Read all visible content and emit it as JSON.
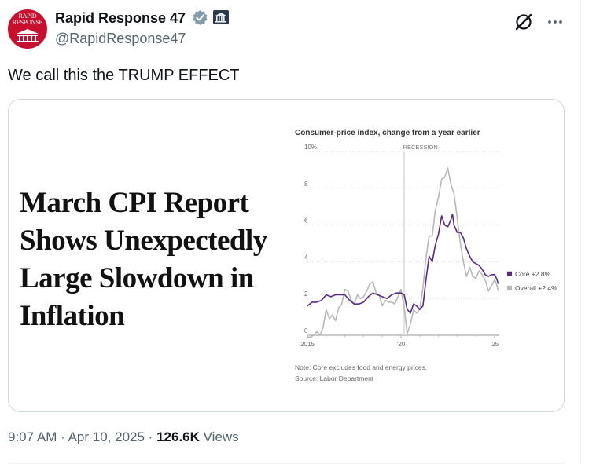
{
  "author": {
    "display_name": "Rapid Response 47",
    "handle": "@RapidResponse47",
    "avatar_text": [
      "RAPID",
      "RESPONSE"
    ]
  },
  "tweet": {
    "text": "We call this the TRUMP EFFECT",
    "headline": "March CPI Report Shows Unexpectedly Large Slowdown in Inflation"
  },
  "meta": {
    "time": "9:07 AM",
    "date": "Apr 10, 2025",
    "separator": "·",
    "views_count": "126.6K",
    "views_label": "Views"
  },
  "colors": {
    "text": "#0f1419",
    "secondary": "#536471",
    "verified": "#829aab",
    "avatar": "#c8102e",
    "core_series": "#5b2a86",
    "overall_series": "#b8b8b8"
  },
  "icons": {
    "verified": "verified-badge-icon",
    "government": "government-building-icon",
    "grok": "grok-icon",
    "more": "more-dots-icon"
  },
  "chart_data": {
    "type": "line",
    "title": "Consumer-price index, change from a year earlier",
    "ylim": [
      0,
      10
    ],
    "yticks": [
      {
        "v": 0,
        "label": "0"
      },
      {
        "v": 2,
        "label": "2"
      },
      {
        "v": 4,
        "label": "4"
      },
      {
        "v": 6,
        "label": "6"
      },
      {
        "v": 8,
        "label": "8"
      },
      {
        "v": 10,
        "label": "10%"
      }
    ],
    "xlim": [
      2015.0,
      2025.25
    ],
    "xticks": [
      {
        "v": 2015.0,
        "label": "2015"
      },
      {
        "v": 2020.0,
        "label": "'20"
      },
      {
        "v": 2025.0,
        "label": "'25"
      }
    ],
    "annotation": {
      "label": "RECESSION",
      "x": 2020.15
    },
    "note": "Note: Core excludes food and energy prices.",
    "source": "Source: Labor Department",
    "series": [
      {
        "name": "Core",
        "legend": "Core +2.8%",
        "color": "#5b2a86",
        "x": [
          2015.0,
          2015.25,
          2015.5,
          2015.75,
          2016.0,
          2016.25,
          2016.5,
          2016.75,
          2017.0,
          2017.25,
          2017.5,
          2017.75,
          2018.0,
          2018.25,
          2018.5,
          2018.75,
          2019.0,
          2019.25,
          2019.5,
          2019.75,
          2020.0,
          2020.17,
          2020.33,
          2020.5,
          2020.67,
          2020.83,
          2021.0,
          2021.17,
          2021.33,
          2021.5,
          2021.67,
          2021.83,
          2022.0,
          2022.17,
          2022.33,
          2022.5,
          2022.67,
          2022.75,
          2022.83,
          2023.0,
          2023.17,
          2023.33,
          2023.5,
          2023.67,
          2023.83,
          2024.0,
          2024.17,
          2024.33,
          2024.5,
          2024.67,
          2024.83,
          2025.0,
          2025.1,
          2025.2
        ],
        "y": [
          1.6,
          1.8,
          1.8,
          1.9,
          2.2,
          2.1,
          2.2,
          2.2,
          2.2,
          1.9,
          1.7,
          1.7,
          1.8,
          2.1,
          2.3,
          2.2,
          2.1,
          2.0,
          2.2,
          2.3,
          2.3,
          2.2,
          1.4,
          1.2,
          1.7,
          1.6,
          1.4,
          1.6,
          3.0,
          4.3,
          4.0,
          4.9,
          5.5,
          6.5,
          6.0,
          5.9,
          6.3,
          6.6,
          6.0,
          5.6,
          5.6,
          5.3,
          4.7,
          4.3,
          4.0,
          3.9,
          3.8,
          3.6,
          3.3,
          3.2,
          3.3,
          3.3,
          3.1,
          2.8
        ]
      },
      {
        "name": "Overall",
        "legend": "Overall +2.4%",
        "color": "#b8b8b8",
        "x": [
          2015.0,
          2015.17,
          2015.33,
          2015.5,
          2015.67,
          2015.83,
          2016.0,
          2016.17,
          2016.33,
          2016.5,
          2016.67,
          2016.83,
          2017.0,
          2017.17,
          2017.33,
          2017.5,
          2017.67,
          2017.83,
          2018.0,
          2018.17,
          2018.33,
          2018.5,
          2018.67,
          2018.83,
          2019.0,
          2019.17,
          2019.33,
          2019.5,
          2019.67,
          2019.83,
          2020.0,
          2020.17,
          2020.33,
          2020.5,
          2020.67,
          2020.83,
          2021.0,
          2021.17,
          2021.33,
          2021.5,
          2021.67,
          2021.83,
          2022.0,
          2022.17,
          2022.33,
          2022.5,
          2022.67,
          2022.83,
          2023.0,
          2023.17,
          2023.33,
          2023.5,
          2023.67,
          2023.83,
          2024.0,
          2024.17,
          2024.33,
          2024.5,
          2024.67,
          2024.83,
          2025.0,
          2025.1,
          2025.2
        ],
        "y": [
          -0.1,
          -0.1,
          0.0,
          0.2,
          0.0,
          0.4,
          1.4,
          0.9,
          1.1,
          0.8,
          1.5,
          1.7,
          2.5,
          2.4,
          1.9,
          1.7,
          2.2,
          2.0,
          2.1,
          2.4,
          2.8,
          2.9,
          2.3,
          2.2,
          1.6,
          1.9,
          1.8,
          1.8,
          1.7,
          2.1,
          2.5,
          1.5,
          0.1,
          0.6,
          1.4,
          1.2,
          1.4,
          2.6,
          4.2,
          5.4,
          5.4,
          6.8,
          7.5,
          8.5,
          8.6,
          9.1,
          8.2,
          7.7,
          6.4,
          5.0,
          4.0,
          3.2,
          3.7,
          3.2,
          3.1,
          3.5,
          3.3,
          3.0,
          2.4,
          2.7,
          3.0,
          2.8,
          2.4
        ]
      }
    ]
  }
}
